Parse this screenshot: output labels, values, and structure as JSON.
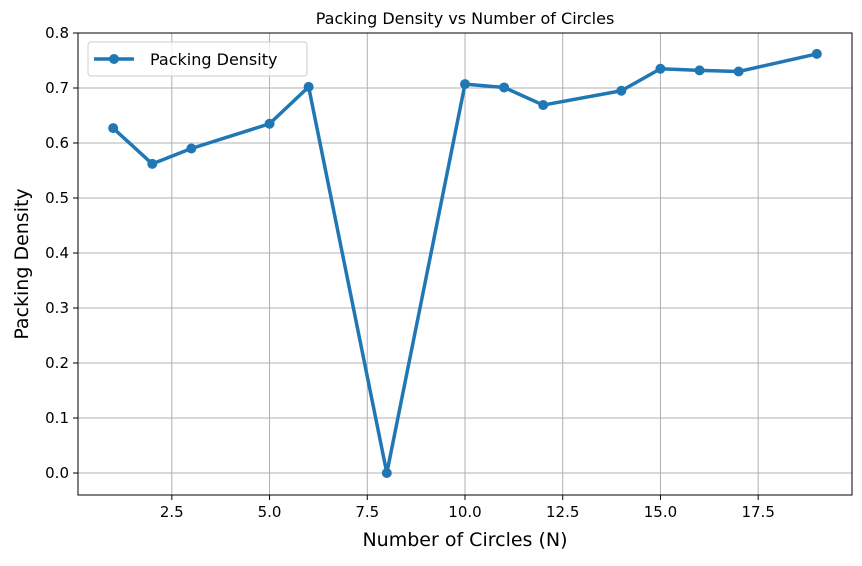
{
  "chart_data": {
    "type": "line",
    "title": "Packing Density vs Number of Circles",
    "xlabel": "Number of Circles (N)",
    "ylabel": "Packing Density",
    "xlim": [
      0.1,
      19.9
    ],
    "ylim": [
      -0.04,
      0.8
    ],
    "xticks": [
      2.5,
      5.0,
      7.5,
      10.0,
      12.5,
      15.0,
      17.5
    ],
    "xtick_labels": [
      "2.5",
      "5.0",
      "7.5",
      "10.0",
      "12.5",
      "15.0",
      "17.5"
    ],
    "yticks": [
      0.0,
      0.1,
      0.2,
      0.3,
      0.4,
      0.5,
      0.6,
      0.7,
      0.8
    ],
    "ytick_labels": [
      "0.0",
      "0.1",
      "0.2",
      "0.3",
      "0.4",
      "0.5",
      "0.6",
      "0.7",
      "0.8"
    ],
    "grid": true,
    "legend_position": "top-left",
    "series": [
      {
        "name": "Packing Density",
        "color": "#1f77b4",
        "marker": "circle",
        "x": [
          1,
          2,
          3,
          5,
          6,
          8,
          10,
          11,
          12,
          14,
          15,
          16,
          17,
          19
        ],
        "y": [
          0.627,
          0.562,
          0.59,
          0.635,
          0.702,
          0.0,
          0.707,
          0.701,
          0.669,
          0.695,
          0.735,
          0.732,
          0.73,
          0.762
        ]
      }
    ]
  }
}
